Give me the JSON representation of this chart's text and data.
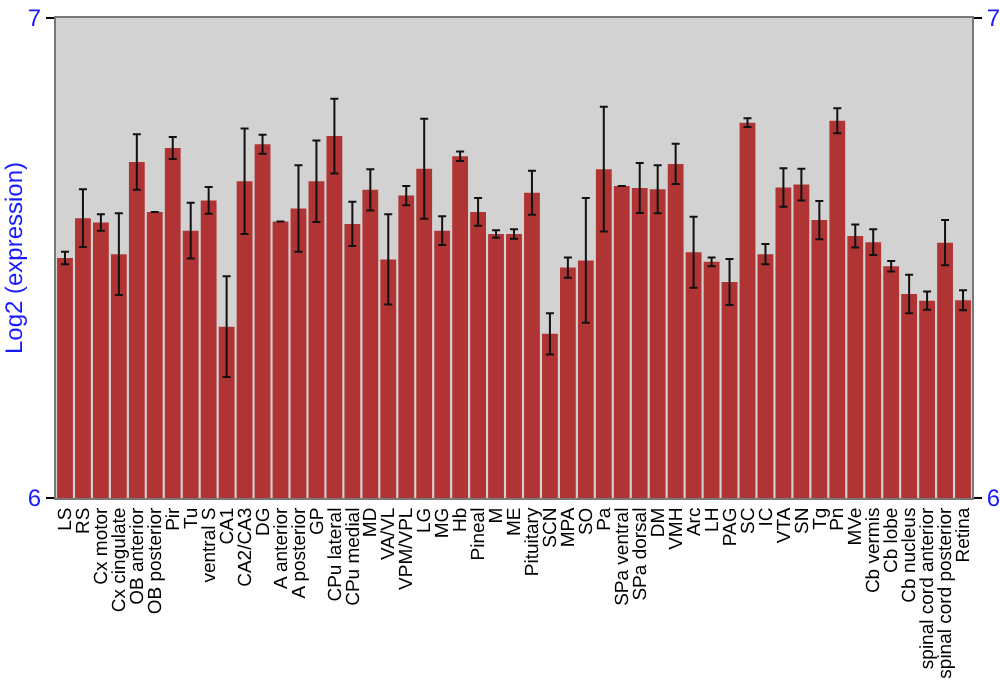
{
  "chart_data": {
    "type": "bar",
    "ylabel": "Log2 (expression)",
    "categories": [
      "LS",
      "RS",
      "Cx motor",
      "Cx cingulate",
      "OB anterior",
      "OB posterior",
      "Pir",
      "Tu",
      "ventral S",
      "CA1",
      "CA2/CA3",
      "DG",
      "A anterior",
      "A posterior",
      "GP",
      "CPu lateral",
      "CPu medial",
      "MD",
      "VA/VL",
      "VPM/VPL",
      "LG",
      "MG",
      "Hb",
      "Pineal",
      "M",
      "ME",
      "Pituitary",
      "SCN",
      "MPA",
      "SO",
      "Pa",
      "SPa ventral",
      "SPa dorsal",
      "DM",
      "VMH",
      "Arc",
      "LH",
      "PAG",
      "SC",
      "IC",
      "VTA",
      "SN",
      "Tg",
      "Pn",
      "MVe",
      "Cb vermis",
      "Cb lobe",
      "Cb nucleus",
      "spinal cord anterior",
      "spinal cord posterior",
      "Retina"
    ],
    "values": [
      6.5,
      6.583,
      6.574,
      6.508,
      6.7,
      6.596,
      6.729,
      6.557,
      6.62,
      6.357,
      6.66,
      6.737,
      6.576,
      6.603,
      6.66,
      6.754,
      6.571,
      6.642,
      6.497,
      6.63,
      6.686,
      6.557,
      6.712,
      6.596,
      6.55,
      6.55,
      6.636,
      6.342,
      6.48,
      6.495,
      6.685,
      6.65,
      6.646,
      6.643,
      6.696,
      6.512,
      6.492,
      6.45,
      6.782,
      6.508,
      6.647,
      6.653,
      6.579,
      6.786,
      6.546,
      6.533,
      6.483,
      6.425,
      6.411,
      6.532,
      6.412
    ],
    "errors": [
      0.013,
      0.06,
      0.017,
      0.085,
      0.058,
      null,
      0.023,
      0.058,
      0.028,
      0.105,
      0.11,
      0.02,
      null,
      0.09,
      0.085,
      0.078,
      0.046,
      0.043,
      0.094,
      0.02,
      0.104,
      0.03,
      0.01,
      0.029,
      0.008,
      0.01,
      0.046,
      0.043,
      0.021,
      0.13,
      0.13,
      null,
      0.052,
      0.05,
      0.042,
      0.074,
      0.009,
      0.048,
      0.009,
      0.021,
      0.04,
      0.033,
      0.04,
      0.026,
      0.024,
      0.027,
      0.011,
      0.04,
      0.019,
      0.047,
      0.021
    ],
    "color": "#b03434",
    "ylim": [
      6,
      7
    ],
    "yticks": [
      6,
      7
    ],
    "y2lim": [
      6,
      7
    ],
    "y2ticks": [
      6,
      7
    ]
  }
}
